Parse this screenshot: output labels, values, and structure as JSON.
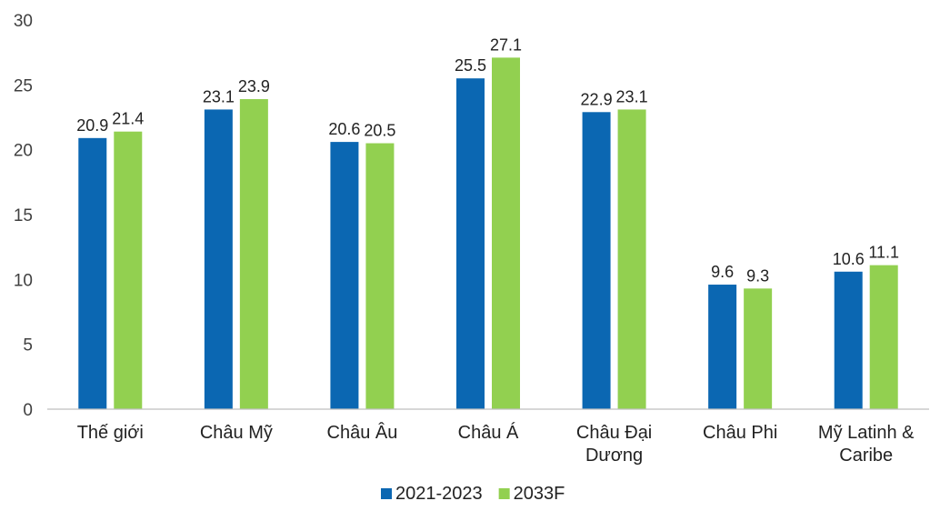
{
  "chart_data": {
    "type": "bar",
    "title": "",
    "xlabel": "",
    "ylabel": "",
    "ylim": [
      0,
      30
    ],
    "yticks": [
      0,
      5,
      10,
      15,
      20,
      25,
      30
    ],
    "grid": false,
    "legend_position": "bottom",
    "categories": [
      [
        "Thế giới"
      ],
      [
        "Châu Mỹ"
      ],
      [
        "Châu Âu"
      ],
      [
        "Châu Á"
      ],
      [
        "Châu Đại",
        "Dương"
      ],
      [
        "Châu Phi"
      ],
      [
        "Mỹ Latinh &",
        "Caribe"
      ]
    ],
    "series": [
      {
        "name": "2021-2023",
        "color": "#0B67B2",
        "values": [
          20.9,
          23.1,
          20.6,
          25.5,
          22.9,
          9.6,
          10.6
        ]
      },
      {
        "name": "2033F",
        "color": "#92D050",
        "values": [
          21.4,
          23.9,
          20.5,
          27.1,
          23.1,
          9.3,
          11.1
        ]
      }
    ]
  }
}
